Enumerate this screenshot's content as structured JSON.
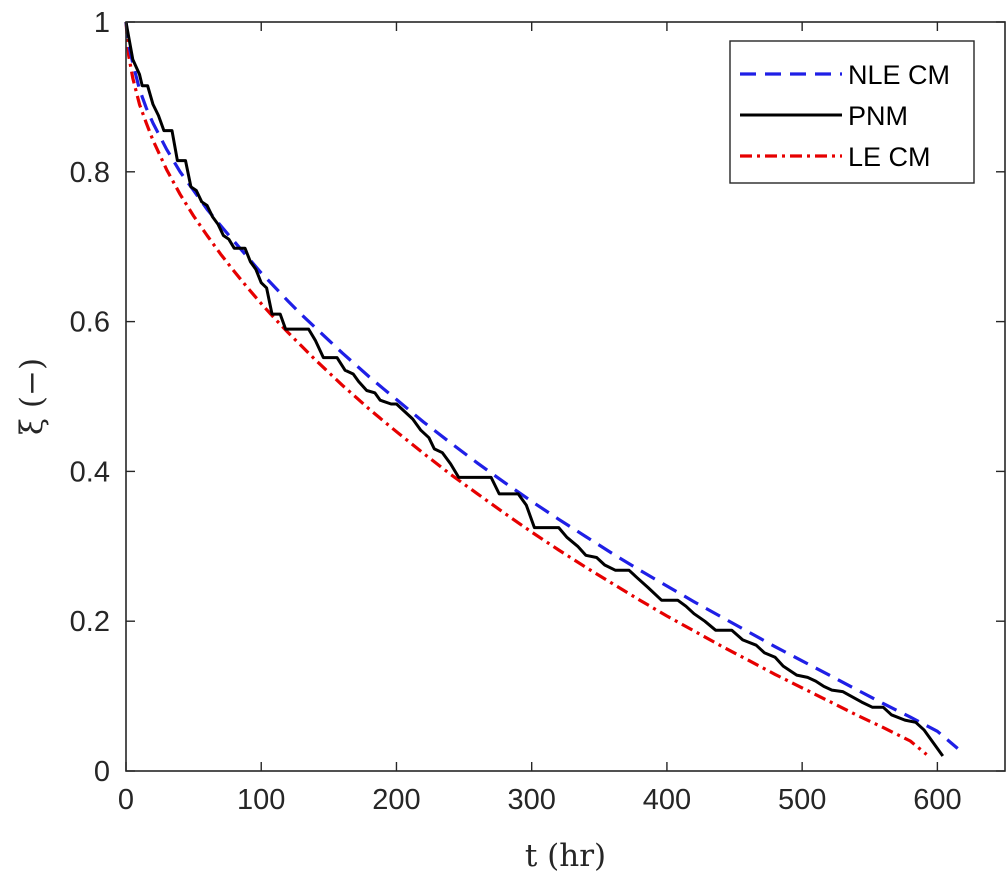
{
  "chart_data": {
    "type": "line",
    "xlabel": "t (hr)",
    "ylabel": "ξ (−)",
    "xlim": [
      0,
      650
    ],
    "ylim": [
      0,
      1
    ],
    "xticks": [
      0,
      100,
      200,
      300,
      400,
      500,
      600
    ],
    "yticks": [
      0,
      0.2,
      0.4,
      0.6,
      0.8,
      1
    ],
    "xtick_labels": [
      "0",
      "100",
      "200",
      "300",
      "400",
      "500",
      "600"
    ],
    "ytick_labels": [
      "0",
      "0.2",
      "0.4",
      "0.6",
      "0.8",
      "1"
    ],
    "grid": false,
    "legend_position": "top-right",
    "series": [
      {
        "name": "NLE CM",
        "color": "#1f1fe6",
        "style": "dashed",
        "points": [
          [
            0,
            1.0
          ],
          [
            2,
            0.97
          ],
          [
            5,
            0.945
          ],
          [
            10,
            0.91
          ],
          [
            15,
            0.885
          ],
          [
            20,
            0.865
          ],
          [
            30,
            0.83
          ],
          [
            40,
            0.8
          ],
          [
            50,
            0.775
          ],
          [
            60,
            0.75
          ],
          [
            70,
            0.728
          ],
          [
            80,
            0.707
          ],
          [
            90,
            0.686
          ],
          [
            100,
            0.665
          ],
          [
            110,
            0.646
          ],
          [
            120,
            0.627
          ],
          [
            130,
            0.609
          ],
          [
            140,
            0.592
          ],
          [
            150,
            0.575
          ],
          [
            160,
            0.558
          ],
          [
            170,
            0.542
          ],
          [
            180,
            0.526
          ],
          [
            190,
            0.511
          ],
          [
            200,
            0.496
          ],
          [
            220,
            0.466
          ],
          [
            240,
            0.438
          ],
          [
            260,
            0.411
          ],
          [
            280,
            0.385
          ],
          [
            300,
            0.36
          ],
          [
            320,
            0.336
          ],
          [
            340,
            0.313
          ],
          [
            360,
            0.29
          ],
          [
            380,
            0.268
          ],
          [
            400,
            0.247
          ],
          [
            420,
            0.226
          ],
          [
            440,
            0.206
          ],
          [
            460,
            0.186
          ],
          [
            480,
            0.166
          ],
          [
            500,
            0.147
          ],
          [
            520,
            0.128
          ],
          [
            540,
            0.109
          ],
          [
            560,
            0.09
          ],
          [
            580,
            0.072
          ],
          [
            600,
            0.053
          ],
          [
            615,
            0.03
          ]
        ]
      },
      {
        "name": "PNM",
        "color": "#000000",
        "style": "solid",
        "points": [
          [
            0,
            1.0
          ],
          [
            5,
            0.95
          ],
          [
            10,
            0.93
          ],
          [
            12,
            0.915
          ],
          [
            16,
            0.915
          ],
          [
            20,
            0.89
          ],
          [
            24,
            0.875
          ],
          [
            28,
            0.855
          ],
          [
            34,
            0.855
          ],
          [
            38,
            0.815
          ],
          [
            44,
            0.815
          ],
          [
            48,
            0.78
          ],
          [
            52,
            0.775
          ],
          [
            56,
            0.76
          ],
          [
            60,
            0.755
          ],
          [
            64,
            0.74
          ],
          [
            68,
            0.73
          ],
          [
            72,
            0.715
          ],
          [
            76,
            0.71
          ],
          [
            80,
            0.698
          ],
          [
            88,
            0.698
          ],
          [
            92,
            0.68
          ],
          [
            96,
            0.67
          ],
          [
            100,
            0.652
          ],
          [
            104,
            0.645
          ],
          [
            108,
            0.61
          ],
          [
            114,
            0.61
          ],
          [
            118,
            0.59
          ],
          [
            135,
            0.59
          ],
          [
            140,
            0.575
          ],
          [
            146,
            0.552
          ],
          [
            156,
            0.552
          ],
          [
            162,
            0.535
          ],
          [
            168,
            0.53
          ],
          [
            172,
            0.52
          ],
          [
            178,
            0.508
          ],
          [
            184,
            0.505
          ],
          [
            188,
            0.495
          ],
          [
            196,
            0.49
          ],
          [
            200,
            0.49
          ],
          [
            206,
            0.48
          ],
          [
            212,
            0.47
          ],
          [
            218,
            0.455
          ],
          [
            224,
            0.445
          ],
          [
            228,
            0.43
          ],
          [
            234,
            0.425
          ],
          [
            240,
            0.41
          ],
          [
            246,
            0.392
          ],
          [
            270,
            0.392
          ],
          [
            276,
            0.37
          ],
          [
            290,
            0.37
          ],
          [
            296,
            0.355
          ],
          [
            302,
            0.325
          ],
          [
            320,
            0.325
          ],
          [
            326,
            0.312
          ],
          [
            334,
            0.3
          ],
          [
            340,
            0.288
          ],
          [
            348,
            0.285
          ],
          [
            354,
            0.275
          ],
          [
            362,
            0.268
          ],
          [
            372,
            0.268
          ],
          [
            378,
            0.258
          ],
          [
            386,
            0.245
          ],
          [
            396,
            0.228
          ],
          [
            408,
            0.228
          ],
          [
            414,
            0.22
          ],
          [
            420,
            0.21
          ],
          [
            428,
            0.2
          ],
          [
            436,
            0.188
          ],
          [
            448,
            0.188
          ],
          [
            456,
            0.175
          ],
          [
            466,
            0.168
          ],
          [
            472,
            0.158
          ],
          [
            480,
            0.152
          ],
          [
            486,
            0.14
          ],
          [
            496,
            0.128
          ],
          [
            504,
            0.125
          ],
          [
            510,
            0.12
          ],
          [
            516,
            0.113
          ],
          [
            522,
            0.108
          ],
          [
            530,
            0.106
          ],
          [
            536,
            0.1
          ],
          [
            544,
            0.092
          ],
          [
            552,
            0.085
          ],
          [
            560,
            0.085
          ],
          [
            566,
            0.075
          ],
          [
            576,
            0.068
          ],
          [
            584,
            0.065
          ],
          [
            590,
            0.055
          ],
          [
            596,
            0.04
          ],
          [
            604,
            0.02
          ]
        ]
      },
      {
        "name": "LE CM",
        "color": "#e60000",
        "style": "dashdot",
        "points": [
          [
            0,
            1.0
          ],
          [
            2,
            0.955
          ],
          [
            5,
            0.925
          ],
          [
            10,
            0.89
          ],
          [
            15,
            0.865
          ],
          [
            20,
            0.842
          ],
          [
            30,
            0.803
          ],
          [
            40,
            0.77
          ],
          [
            50,
            0.741
          ],
          [
            60,
            0.715
          ],
          [
            70,
            0.69
          ],
          [
            80,
            0.667
          ],
          [
            90,
            0.645
          ],
          [
            100,
            0.624
          ],
          [
            110,
            0.604
          ],
          [
            120,
            0.585
          ],
          [
            130,
            0.567
          ],
          [
            140,
            0.549
          ],
          [
            150,
            0.532
          ],
          [
            160,
            0.515
          ],
          [
            170,
            0.499
          ],
          [
            180,
            0.483
          ],
          [
            190,
            0.468
          ],
          [
            200,
            0.453
          ],
          [
            220,
            0.424
          ],
          [
            240,
            0.396
          ],
          [
            260,
            0.37
          ],
          [
            280,
            0.344
          ],
          [
            300,
            0.319
          ],
          [
            320,
            0.295
          ],
          [
            340,
            0.272
          ],
          [
            360,
            0.25
          ],
          [
            380,
            0.228
          ],
          [
            400,
            0.207
          ],
          [
            420,
            0.187
          ],
          [
            440,
            0.167
          ],
          [
            460,
            0.148
          ],
          [
            480,
            0.129
          ],
          [
            500,
            0.111
          ],
          [
            520,
            0.093
          ],
          [
            540,
            0.075
          ],
          [
            560,
            0.058
          ],
          [
            580,
            0.04
          ],
          [
            592,
            0.022
          ]
        ]
      }
    ]
  }
}
